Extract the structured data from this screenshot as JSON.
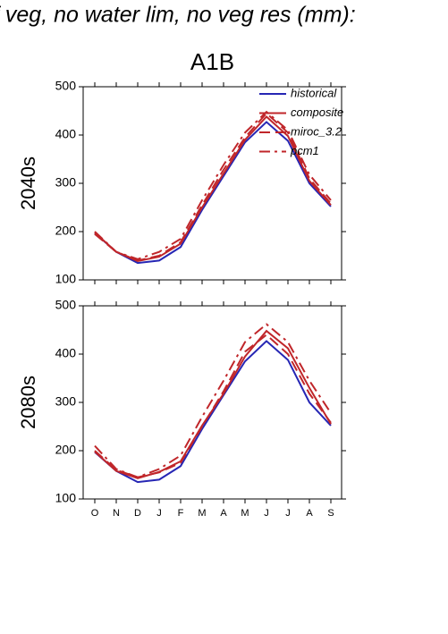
{
  "header": {
    "title": "f veg, no water lim, no veg res (mm):"
  },
  "chart_data": [
    {
      "type": "line",
      "title": "A1B",
      "y_label": "2040s",
      "categories": [
        null,
        null,
        null,
        null,
        null,
        null,
        null,
        null,
        null,
        null,
        null,
        null
      ],
      "ylim": [
        100,
        500
      ],
      "yticks": [
        100,
        200,
        300,
        400,
        500
      ],
      "legend": "upper right",
      "series": [
        {
          "name": "historical",
          "color": "#2626b4",
          "values": [
            197,
            158,
            135,
            140,
            168,
            245,
            315,
            385,
            427,
            388,
            300,
            252
          ]
        },
        {
          "name": "composite",
          "color": "#c0262a",
          "values": [
            198,
            158,
            139,
            148,
            175,
            250,
            320,
            390,
            438,
            398,
            305,
            255
          ]
        },
        {
          "name": "miroc_3.2",
          "color": "#c0262a",
          "values": [
            195,
            158,
            140,
            150,
            178,
            255,
            328,
            395,
            445,
            405,
            310,
            258
          ]
        },
        {
          "name": "pcm1",
          "color": "#c0262a",
          "values": [
            200,
            158,
            143,
            158,
            185,
            265,
            338,
            405,
            448,
            410,
            318,
            265
          ]
        }
      ]
    },
    {
      "type": "line",
      "y_label": "2080s",
      "categories": [
        "O",
        "N",
        "D",
        "J",
        "F",
        "M",
        "A",
        "M",
        "J",
        "J",
        "A",
        "S"
      ],
      "ylim": [
        100,
        500
      ],
      "yticks": [
        100,
        200,
        300,
        400,
        500
      ],
      "legend": "none",
      "series": [
        {
          "name": "historical",
          "color": "#2626b4",
          "values": [
            197,
            158,
            135,
            140,
            168,
            245,
            315,
            385,
            427,
            388,
            300,
            252
          ]
        },
        {
          "name": "composite",
          "color": "#c0262a",
          "values": [
            198,
            158,
            143,
            156,
            178,
            252,
            318,
            395,
            448,
            412,
            330,
            255
          ]
        },
        {
          "name": "miroc_3.2",
          "color": "#c0262a",
          "values": [
            200,
            160,
            145,
            155,
            175,
            250,
            323,
            405,
            440,
            400,
            318,
            258
          ]
        },
        {
          "name": "pcm1",
          "color": "#c0262a",
          "values": [
            210,
            162,
            145,
            162,
            190,
            270,
            345,
            425,
            462,
            425,
            345,
            278
          ]
        }
      ]
    }
  ]
}
